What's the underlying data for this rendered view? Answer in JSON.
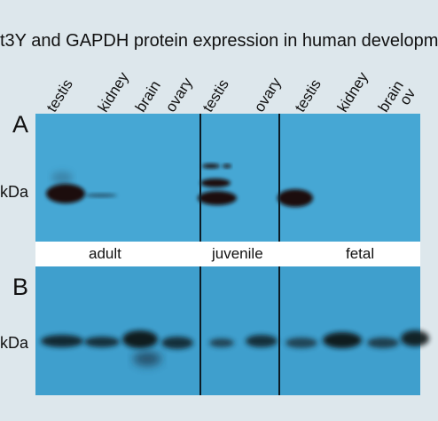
{
  "figure": {
    "title": "t3Y and GAPDH protein expression in human developm",
    "lanes": [
      "testis",
      "kidney",
      "brain",
      "ovary",
      "testis",
      "ovary",
      "testis",
      "kidney",
      "brain",
      "ov"
    ],
    "panels": [
      {
        "letter": "A",
        "marker": "kDa"
      },
      {
        "letter": "B",
        "marker": "kDa"
      }
    ],
    "groups": [
      "adult",
      "juvenile",
      "fetal"
    ],
    "colors": {
      "page_background": "#dde7ec",
      "membrane_a": "#46a7d4",
      "membrane_b": "#3f9fcd",
      "band": "#1c0d0a",
      "divider": "#0b1b25"
    }
  }
}
